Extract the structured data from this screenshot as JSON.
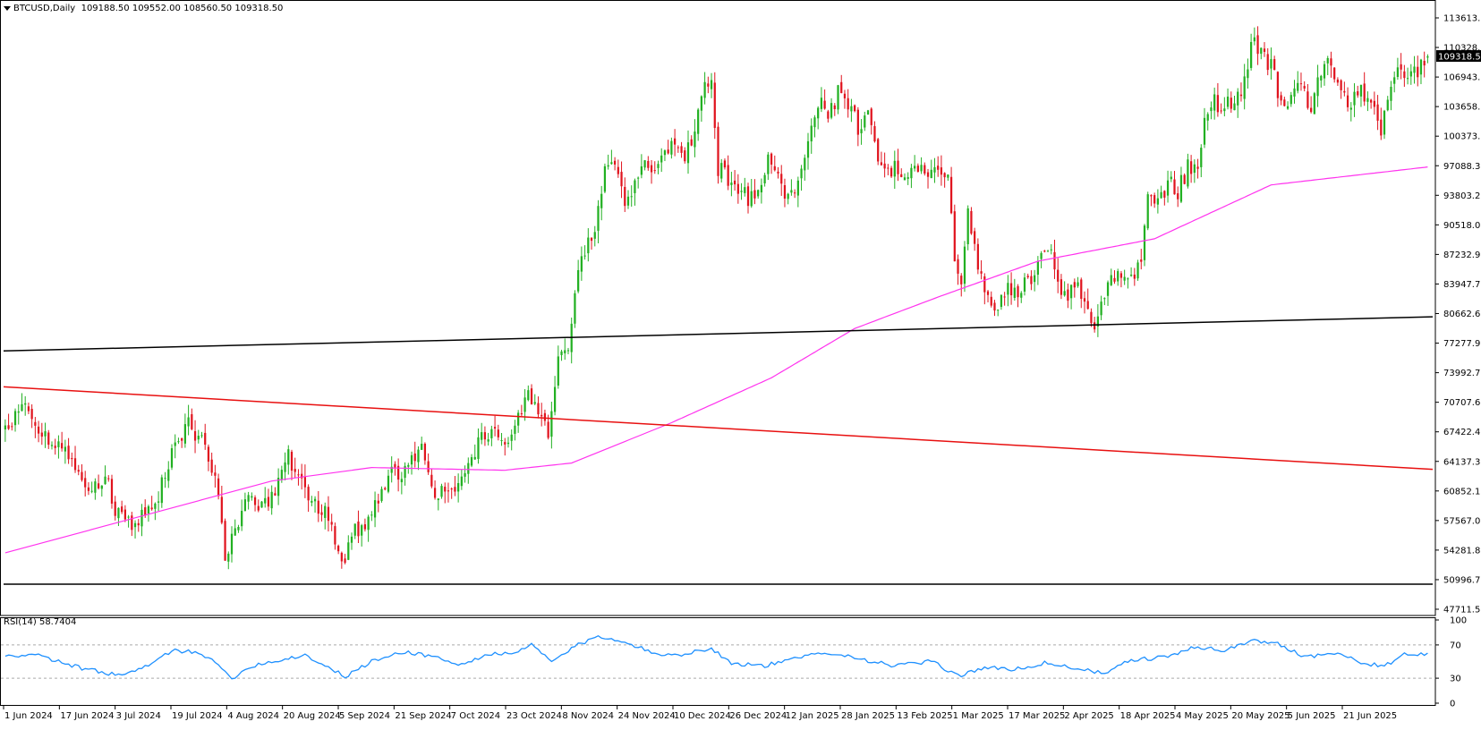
{
  "header": {
    "symbol": "BTCUSD,Daily",
    "ohlc": "109188.50 109552.00 108560.50 109318.50"
  },
  "colors": {
    "bull": "#22b022",
    "bear": "#e0141e",
    "ma": "#ff33ee",
    "support_black": "#000000",
    "trend_red": "#e81010",
    "rsi_line": "#1e90ff",
    "price_tag_bg": "#000000"
  },
  "price_axis": {
    "ticks": [
      "113613.65",
      "110328.50",
      "106943.80",
      "103658.65",
      "100373.50",
      "97088.35",
      "93803.20",
      "90518.05",
      "87232.90",
      "83947.75",
      "80662.60",
      "77277.90",
      "73992.75",
      "70707.60",
      "67422.45",
      "64137.30",
      "60852.15",
      "57567.00",
      "54281.85",
      "50996.70",
      "47711.55"
    ],
    "current_price": "109318.50"
  },
  "time_axis": {
    "labels": [
      "1 Jun 2024",
      "17 Jun 2024",
      "3 Jul 2024",
      "19 Jul 2024",
      "4 Aug 2024",
      "20 Aug 2024",
      "5 Sep 2024",
      "21 Sep 2024",
      "7 Oct 2024",
      "23 Oct 2024",
      "8 Nov 2024",
      "24 Nov 2024",
      "10 Dec 2024",
      "26 Dec 2024",
      "12 Jan 2025",
      "28 Jan 2025",
      "13 Feb 2025",
      "1 Mar 2025",
      "17 Mar 2025",
      "2 Apr 2025",
      "18 Apr 2025",
      "4 May 2025",
      "20 May 2025",
      "5 Jun 2025",
      "21 Jun 2025"
    ]
  },
  "rsi": {
    "label": "RSI(14) 58.7404",
    "ticks": [
      "100",
      "70",
      "30",
      "0"
    ],
    "levels": [
      70,
      30
    ]
  },
  "chart_data": {
    "type": "candlestick",
    "symbol": "BTCUSD",
    "timeframe": "Daily",
    "ylim": [
      47711.55,
      113613.65
    ],
    "last_close": 109318.5,
    "close_path": [
      {
        "day": 0,
        "close": 67800
      },
      {
        "day": 3,
        "close": 69500
      },
      {
        "day": 6,
        "close": 71000
      },
      {
        "day": 10,
        "close": 68000
      },
      {
        "day": 15,
        "close": 66000
      },
      {
        "day": 20,
        "close": 64500
      },
      {
        "day": 25,
        "close": 61000
      },
      {
        "day": 30,
        "close": 62500
      },
      {
        "day": 34,
        "close": 58000
      },
      {
        "day": 38,
        "close": 57000
      },
      {
        "day": 42,
        "close": 58500
      },
      {
        "day": 46,
        "close": 60000
      },
      {
        "day": 49,
        "close": 64000
      },
      {
        "day": 52,
        "close": 67000
      },
      {
        "day": 55,
        "close": 68000
      },
      {
        "day": 59,
        "close": 66500
      },
      {
        "day": 62,
        "close": 64000
      },
      {
        "day": 64,
        "close": 59500
      },
      {
        "day": 66,
        "close": 54000
      },
      {
        "day": 69,
        "close": 57000
      },
      {
        "day": 73,
        "close": 60500
      },
      {
        "day": 77,
        "close": 59000
      },
      {
        "day": 81,
        "close": 61000
      },
      {
        "day": 85,
        "close": 64500
      },
      {
        "day": 89,
        "close": 61500
      },
      {
        "day": 93,
        "close": 59000
      },
      {
        "day": 97,
        "close": 58000
      },
      {
        "day": 100,
        "close": 54500
      },
      {
        "day": 102,
        "close": 53500
      },
      {
        "day": 105,
        "close": 56500
      },
      {
        "day": 109,
        "close": 58000
      },
      {
        "day": 113,
        "close": 61000
      },
      {
        "day": 117,
        "close": 63000
      },
      {
        "day": 121,
        "close": 63500
      },
      {
        "day": 125,
        "close": 65500
      },
      {
        "day": 128,
        "close": 60500
      },
      {
        "day": 132,
        "close": 61500
      },
      {
        "day": 135,
        "close": 60000
      },
      {
        "day": 139,
        "close": 63000
      },
      {
        "day": 142,
        "close": 66500
      },
      {
        "day": 146,
        "close": 68000
      },
      {
        "day": 150,
        "close": 66500
      },
      {
        "day": 154,
        "close": 69000
      },
      {
        "day": 157,
        "close": 72500
      },
      {
        "day": 160,
        "close": 69000
      },
      {
        "day": 163,
        "close": 67500
      },
      {
        "day": 166,
        "close": 76500
      },
      {
        "day": 169,
        "close": 76500
      },
      {
        "day": 171,
        "close": 84000
      },
      {
        "day": 174,
        "close": 88000
      },
      {
        "day": 177,
        "close": 90500
      },
      {
        "day": 180,
        "close": 96500
      },
      {
        "day": 183,
        "close": 97500
      },
      {
        "day": 186,
        "close": 93500
      },
      {
        "day": 189,
        "close": 95500
      },
      {
        "day": 192,
        "close": 97000
      },
      {
        "day": 195,
        "close": 95500
      },
      {
        "day": 198,
        "close": 98500
      },
      {
        "day": 201,
        "close": 99500
      },
      {
        "day": 204,
        "close": 97500
      },
      {
        "day": 207,
        "close": 101500
      },
      {
        "day": 210,
        "close": 106000
      },
      {
        "day": 212,
        "close": 107000
      },
      {
        "day": 214,
        "close": 97000
      },
      {
        "day": 217,
        "close": 95500
      },
      {
        "day": 220,
        "close": 94000
      },
      {
        "day": 223,
        "close": 93500
      },
      {
        "day": 226,
        "close": 94500
      },
      {
        "day": 229,
        "close": 98000
      },
      {
        "day": 232,
        "close": 95500
      },
      {
        "day": 235,
        "close": 93000
      },
      {
        "day": 238,
        "close": 94500
      },
      {
        "day": 241,
        "close": 100000
      },
      {
        "day": 244,
        "close": 104500
      },
      {
        "day": 247,
        "close": 102500
      },
      {
        "day": 250,
        "close": 105500
      },
      {
        "day": 253,
        "close": 104500
      },
      {
        "day": 256,
        "close": 101500
      },
      {
        "day": 259,
        "close": 102500
      },
      {
        "day": 262,
        "close": 97500
      },
      {
        "day": 265,
        "close": 96500
      },
      {
        "day": 268,
        "close": 97000
      },
      {
        "day": 271,
        "close": 96000
      },
      {
        "day": 274,
        "close": 97500
      },
      {
        "day": 277,
        "close": 96000
      },
      {
        "day": 280,
        "close": 97000
      },
      {
        "day": 283,
        "close": 95500
      },
      {
        "day": 285,
        "close": 86500
      },
      {
        "day": 287,
        "close": 84000
      },
      {
        "day": 289,
        "close": 92500
      },
      {
        "day": 292,
        "close": 86000
      },
      {
        "day": 295,
        "close": 82000
      },
      {
        "day": 297,
        "close": 80500
      },
      {
        "day": 300,
        "close": 83500
      },
      {
        "day": 303,
        "close": 82500
      },
      {
        "day": 306,
        "close": 84000
      },
      {
        "day": 309,
        "close": 84500
      },
      {
        "day": 312,
        "close": 87500
      },
      {
        "day": 315,
        "close": 86500
      },
      {
        "day": 318,
        "close": 82500
      },
      {
        "day": 321,
        "close": 84500
      },
      {
        "day": 324,
        "close": 82000
      },
      {
        "day": 327,
        "close": 78500
      },
      {
        "day": 330,
        "close": 83000
      },
      {
        "day": 333,
        "close": 85000
      },
      {
        "day": 336,
        "close": 84500
      },
      {
        "day": 339,
        "close": 85000
      },
      {
        "day": 341,
        "close": 87500
      },
      {
        "day": 343,
        "close": 93000
      },
      {
        "day": 346,
        "close": 94000
      },
      {
        "day": 349,
        "close": 95000
      },
      {
        "day": 352,
        "close": 94500
      },
      {
        "day": 355,
        "close": 97000
      },
      {
        "day": 358,
        "close": 97000
      },
      {
        "day": 360,
        "close": 103000
      },
      {
        "day": 363,
        "close": 104000
      },
      {
        "day": 366,
        "close": 103500
      },
      {
        "day": 369,
        "close": 104500
      },
      {
        "day": 372,
        "close": 106500
      },
      {
        "day": 374,
        "close": 111000
      },
      {
        "day": 377,
        "close": 109500
      },
      {
        "day": 380,
        "close": 108000
      },
      {
        "day": 383,
        "close": 104500
      },
      {
        "day": 386,
        "close": 105000
      },
      {
        "day": 389,
        "close": 105500
      },
      {
        "day": 392,
        "close": 103500
      },
      {
        "day": 395,
        "close": 107500
      },
      {
        "day": 398,
        "close": 109000
      },
      {
        "day": 401,
        "close": 105000
      },
      {
        "day": 404,
        "close": 104500
      },
      {
        "day": 407,
        "close": 105500
      },
      {
        "day": 410,
        "close": 104000
      },
      {
        "day": 413,
        "close": 100500
      },
      {
        "day": 416,
        "close": 106000
      },
      {
        "day": 419,
        "close": 107500
      },
      {
        "day": 422,
        "close": 107500
      },
      {
        "day": 425,
        "close": 108000
      },
      {
        "day": 427,
        "close": 109318.5
      }
    ],
    "moving_average": [
      {
        "day": 0,
        "value": 54000
      },
      {
        "day": 40,
        "value": 58000
      },
      {
        "day": 80,
        "value": 62000
      },
      {
        "day": 110,
        "value": 63500
      },
      {
        "day": 150,
        "value": 63200
      },
      {
        "day": 170,
        "value": 64000
      },
      {
        "day": 200,
        "value": 68500
      },
      {
        "day": 230,
        "value": 73500
      },
      {
        "day": 255,
        "value": 79000
      },
      {
        "day": 280,
        "value": 82500
      },
      {
        "day": 310,
        "value": 86500
      },
      {
        "day": 345,
        "value": 89000
      },
      {
        "day": 380,
        "value": 95000
      },
      {
        "day": 427,
        "value": 97000
      }
    ],
    "lines": [
      {
        "name": "upper support",
        "from": {
          "day": 0,
          "value": 76500
        },
        "to": {
          "day": 429,
          "value": 80300
        }
      },
      {
        "name": "trend line",
        "from": {
          "day": 0,
          "value": 72500
        },
        "to": {
          "day": 429,
          "value": 63300
        }
      },
      {
        "name": "lower support",
        "from": {
          "day": 0,
          "value": 50500
        },
        "to": {
          "day": 429,
          "value": 50500
        }
      }
    ],
    "rsi_path": [
      {
        "day": 0,
        "value": 55
      },
      {
        "day": 8,
        "value": 60
      },
      {
        "day": 20,
        "value": 45
      },
      {
        "day": 25,
        "value": 40
      },
      {
        "day": 35,
        "value": 33
      },
      {
        "day": 42,
        "value": 43
      },
      {
        "day": 50,
        "value": 63
      },
      {
        "day": 58,
        "value": 62
      },
      {
        "day": 64,
        "value": 45
      },
      {
        "day": 68,
        "value": 30
      },
      {
        "day": 74,
        "value": 45
      },
      {
        "day": 90,
        "value": 58
      },
      {
        "day": 96,
        "value": 45
      },
      {
        "day": 102,
        "value": 32
      },
      {
        "day": 110,
        "value": 50
      },
      {
        "day": 120,
        "value": 62
      },
      {
        "day": 130,
        "value": 55
      },
      {
        "day": 136,
        "value": 45
      },
      {
        "day": 146,
        "value": 60
      },
      {
        "day": 152,
        "value": 58
      },
      {
        "day": 158,
        "value": 70
      },
      {
        "day": 164,
        "value": 50
      },
      {
        "day": 172,
        "value": 70
      },
      {
        "day": 178,
        "value": 80
      },
      {
        "day": 186,
        "value": 75
      },
      {
        "day": 194,
        "value": 60
      },
      {
        "day": 202,
        "value": 58
      },
      {
        "day": 212,
        "value": 66
      },
      {
        "day": 218,
        "value": 48
      },
      {
        "day": 228,
        "value": 45
      },
      {
        "day": 236,
        "value": 52
      },
      {
        "day": 246,
        "value": 62
      },
      {
        "day": 255,
        "value": 55
      },
      {
        "day": 266,
        "value": 45
      },
      {
        "day": 278,
        "value": 50
      },
      {
        "day": 286,
        "value": 33
      },
      {
        "day": 294,
        "value": 43
      },
      {
        "day": 302,
        "value": 40
      },
      {
        "day": 312,
        "value": 48
      },
      {
        "day": 322,
        "value": 42
      },
      {
        "day": 330,
        "value": 35
      },
      {
        "day": 338,
        "value": 52
      },
      {
        "day": 348,
        "value": 55
      },
      {
        "day": 358,
        "value": 68
      },
      {
        "day": 366,
        "value": 63
      },
      {
        "day": 374,
        "value": 75
      },
      {
        "day": 382,
        "value": 72
      },
      {
        "day": 390,
        "value": 56
      },
      {
        "day": 400,
        "value": 60
      },
      {
        "day": 406,
        "value": 50
      },
      {
        "day": 414,
        "value": 44
      },
      {
        "day": 420,
        "value": 58
      },
      {
        "day": 427,
        "value": 58.74
      }
    ]
  }
}
